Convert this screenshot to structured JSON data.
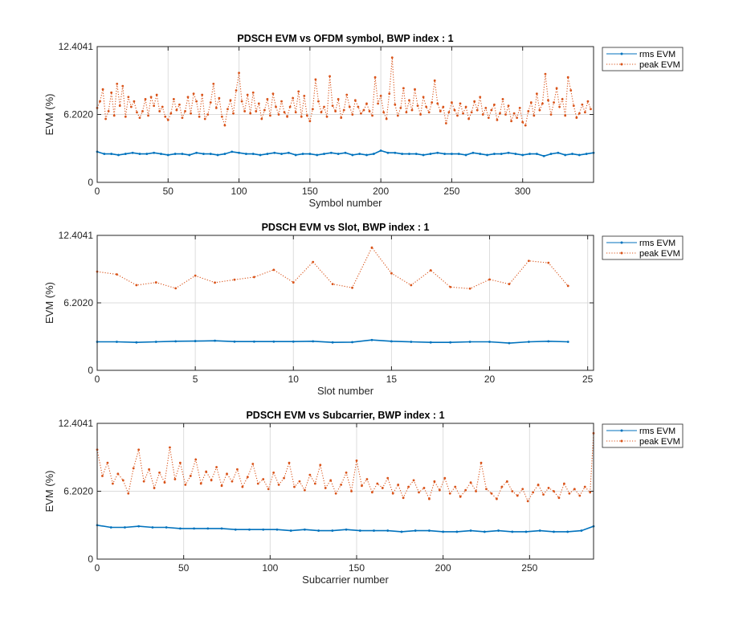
{
  "colors": {
    "rms": "#0072BD",
    "peak": "#D95319",
    "grid": "#dcdcdc",
    "axis": "#262626"
  },
  "chart_data": [
    {
      "type": "line",
      "title": "PDSCH EVM vs OFDM symbol, BWP index : 1",
      "xlabel": "Symbol number",
      "ylabel": "EVM (%)",
      "xlim": [
        0,
        350
      ],
      "ylim": [
        0,
        12.4041
      ],
      "xticks": [
        "0",
        "50",
        "100",
        "150",
        "200",
        "250",
        "300"
      ],
      "yticks": [
        "0",
        "6.2020",
        "12.4041"
      ],
      "grid": true,
      "legend": "outside-top-right",
      "series": [
        {
          "name": "rms EVM",
          "color": "#0072BD",
          "style": "solid",
          "x": [
            0,
            5,
            10,
            15,
            20,
            25,
            30,
            35,
            40,
            45,
            50,
            55,
            60,
            65,
            70,
            75,
            80,
            85,
            90,
            95,
            100,
            105,
            110,
            115,
            120,
            125,
            130,
            135,
            140,
            145,
            150,
            155,
            160,
            165,
            170,
            175,
            180,
            185,
            190,
            195,
            200,
            205,
            210,
            215,
            220,
            225,
            230,
            235,
            240,
            245,
            250,
            255,
            260,
            265,
            270,
            275,
            280,
            285,
            290,
            295,
            300,
            305,
            310,
            315,
            320,
            325,
            330,
            335,
            340,
            345,
            350
          ],
          "y": [
            2.8,
            2.6,
            2.6,
            2.5,
            2.6,
            2.7,
            2.6,
            2.6,
            2.7,
            2.6,
            2.5,
            2.6,
            2.6,
            2.5,
            2.7,
            2.6,
            2.6,
            2.5,
            2.6,
            2.8,
            2.7,
            2.6,
            2.6,
            2.5,
            2.6,
            2.7,
            2.6,
            2.7,
            2.5,
            2.6,
            2.6,
            2.5,
            2.6,
            2.7,
            2.6,
            2.7,
            2.5,
            2.6,
            2.5,
            2.6,
            2.9,
            2.7,
            2.7,
            2.6,
            2.6,
            2.6,
            2.5,
            2.6,
            2.7,
            2.6,
            2.6,
            2.6,
            2.5,
            2.7,
            2.6,
            2.5,
            2.6,
            2.6,
            2.7,
            2.6,
            2.5,
            2.6,
            2.6,
            2.4,
            2.6,
            2.7,
            2.5,
            2.6,
            2.5,
            2.6,
            2.7
          ]
        },
        {
          "name": "peak EVM",
          "color": "#D95319",
          "style": "dotted",
          "x": [
            0,
            2,
            4,
            6,
            8,
            10,
            12,
            14,
            16,
            18,
            20,
            22,
            24,
            26,
            28,
            30,
            32,
            34,
            36,
            38,
            40,
            42,
            44,
            46,
            48,
            50,
            52,
            54,
            56,
            58,
            60,
            62,
            64,
            66,
            68,
            70,
            72,
            74,
            76,
            78,
            80,
            82,
            84,
            86,
            88,
            90,
            92,
            94,
            96,
            98,
            100,
            102,
            104,
            106,
            108,
            110,
            112,
            114,
            116,
            118,
            120,
            122,
            124,
            126,
            128,
            130,
            132,
            134,
            136,
            138,
            140,
            142,
            144,
            146,
            148,
            150,
            152,
            154,
            156,
            158,
            160,
            162,
            164,
            166,
            168,
            170,
            172,
            174,
            176,
            178,
            180,
            182,
            184,
            186,
            188,
            190,
            192,
            194,
            196,
            198,
            200,
            202,
            204,
            206,
            208,
            210,
            212,
            214,
            216,
            218,
            220,
            222,
            224,
            226,
            228,
            230,
            232,
            234,
            236,
            238,
            240,
            242,
            244,
            246,
            248,
            250,
            252,
            254,
            256,
            258,
            260,
            262,
            264,
            266,
            268,
            270,
            272,
            274,
            276,
            278,
            280,
            282,
            284,
            286,
            288,
            290,
            292,
            294,
            296,
            298,
            300,
            302,
            304,
            306,
            308,
            310,
            312,
            314,
            316,
            318,
            320,
            322,
            324,
            326,
            328,
            330,
            332,
            334,
            336,
            338,
            340,
            342,
            344,
            346,
            348
          ],
          "y": [
            6.8,
            7.4,
            8.5,
            5.8,
            6.5,
            8.2,
            6.1,
            9.0,
            7.0,
            8.8,
            6.0,
            7.8,
            6.9,
            7.4,
            6.4,
            5.9,
            6.5,
            7.6,
            6.1,
            7.8,
            7.0,
            8.0,
            6.5,
            6.9,
            6.0,
            5.7,
            6.3,
            7.6,
            6.6,
            7.1,
            5.9,
            6.5,
            7.8,
            6.3,
            8.1,
            7.4,
            6.0,
            8.0,
            5.8,
            6.2,
            7.3,
            9.0,
            6.8,
            7.7,
            6.0,
            5.2,
            6.7,
            7.5,
            6.3,
            8.4,
            10.0,
            7.4,
            6.5,
            8.0,
            6.3,
            8.2,
            6.5,
            7.2,
            5.8,
            6.6,
            7.6,
            6.1,
            8.1,
            6.9,
            6.2,
            7.4,
            6.4,
            6.0,
            6.9,
            7.7,
            6.4,
            8.3,
            6.0,
            7.9,
            6.1,
            5.6,
            6.7,
            9.4,
            7.4,
            6.4,
            6.9,
            6.0,
            9.7,
            7.0,
            6.5,
            7.6,
            5.9,
            6.6,
            8.0,
            6.9,
            6.2,
            7.5,
            6.9,
            6.3,
            6.6,
            7.2,
            6.5,
            6.1,
            9.6,
            7.2,
            7.9,
            6.4,
            5.8,
            8.1,
            11.4,
            7.1,
            6.1,
            6.8,
            8.6,
            6.4,
            7.5,
            6.6,
            8.5,
            7.0,
            6.2,
            7.8,
            6.9,
            6.4,
            7.3,
            9.3,
            7.2,
            6.5,
            6.9,
            5.4,
            6.4,
            7.3,
            6.6,
            6.1,
            7.2,
            6.3,
            6.9,
            5.8,
            6.4,
            7.4,
            6.6,
            7.8,
            6.2,
            6.8,
            5.9,
            6.6,
            7.1,
            5.7,
            6.3,
            7.6,
            6.2,
            7.0,
            5.6,
            6.3,
            5.9,
            6.8,
            5.5,
            5.2,
            6.5,
            7.3,
            6.1,
            8.1,
            6.6,
            7.2,
            9.9,
            7.5,
            6.2,
            7.3,
            8.6,
            6.9,
            7.6,
            6.1,
            9.6,
            8.4,
            7.0,
            5.9,
            6.3,
            7.1,
            6.4,
            7.4,
            6.7
          ]
        }
      ]
    },
    {
      "type": "line",
      "title": "PDSCH EVM vs Slot, BWP index : 1",
      "xlabel": "Slot number",
      "ylabel": "EVM (%)",
      "xlim": [
        0,
        25.3
      ],
      "ylim": [
        0,
        12.4041
      ],
      "xticks": [
        "0",
        "5",
        "10",
        "15",
        "20",
        "25"
      ],
      "yticks": [
        "0",
        "6.2020",
        "12.4041"
      ],
      "grid": true,
      "legend": "outside-top-right",
      "series": [
        {
          "name": "rms EVM",
          "color": "#0072BD",
          "style": "solid",
          "x": [
            0,
            1,
            2,
            3,
            4,
            5,
            6,
            7,
            8,
            9,
            10,
            11,
            12,
            13,
            14,
            15,
            16,
            17,
            18,
            19,
            20,
            21,
            22,
            23,
            24
          ],
          "y": [
            2.62,
            2.62,
            2.57,
            2.62,
            2.67,
            2.69,
            2.72,
            2.64,
            2.64,
            2.64,
            2.64,
            2.67,
            2.57,
            2.59,
            2.79,
            2.67,
            2.62,
            2.57,
            2.57,
            2.62,
            2.62,
            2.5,
            2.62,
            2.67,
            2.62
          ]
        },
        {
          "name": "peak EVM",
          "color": "#D95319",
          "style": "dotted",
          "x": [
            0,
            1,
            2,
            3,
            4,
            5,
            6,
            7,
            8,
            9,
            10,
            11,
            12,
            13,
            14,
            15,
            16,
            17,
            18,
            19,
            20,
            21,
            22,
            23,
            24
          ],
          "y": [
            9.07,
            8.82,
            7.83,
            8.08,
            7.54,
            8.7,
            8.06,
            8.33,
            8.57,
            9.24,
            8.08,
            9.96,
            7.93,
            7.59,
            11.29,
            8.92,
            7.83,
            9.19,
            7.66,
            7.51,
            8.35,
            7.93,
            10.06,
            9.88,
            7.76
          ]
        }
      ]
    },
    {
      "type": "line",
      "title": "PDSCH EVM vs Subcarrier, BWP index : 1",
      "xlabel": "Subcarrier number",
      "ylabel": "EVM (%)",
      "xlim": [
        0,
        287
      ],
      "ylim": [
        0,
        12.4041
      ],
      "xticks": [
        "0",
        "50",
        "100",
        "150",
        "200",
        "250"
      ],
      "yticks": [
        "0",
        "6.2020",
        "12.4041"
      ],
      "grid": true,
      "legend": "outside-top-right",
      "series": [
        {
          "name": "rms EVM",
          "color": "#0072BD",
          "style": "solid",
          "x": [
            0,
            8,
            16,
            24,
            32,
            40,
            48,
            56,
            64,
            72,
            80,
            88,
            96,
            104,
            112,
            120,
            128,
            136,
            144,
            152,
            160,
            168,
            176,
            184,
            192,
            200,
            208,
            216,
            224,
            232,
            240,
            248,
            256,
            264,
            272,
            280,
            287
          ],
          "y": [
            3.1,
            2.9,
            2.9,
            3.0,
            2.9,
            2.9,
            2.8,
            2.8,
            2.8,
            2.8,
            2.7,
            2.7,
            2.7,
            2.7,
            2.6,
            2.7,
            2.6,
            2.6,
            2.7,
            2.6,
            2.6,
            2.6,
            2.5,
            2.6,
            2.6,
            2.5,
            2.5,
            2.6,
            2.5,
            2.6,
            2.5,
            2.5,
            2.6,
            2.5,
            2.5,
            2.6,
            3.0
          ]
        },
        {
          "name": "peak EVM",
          "color": "#D95319",
          "style": "dotted",
          "x": [
            0,
            3,
            6,
            9,
            12,
            15,
            18,
            21,
            24,
            27,
            30,
            33,
            36,
            39,
            42,
            45,
            48,
            51,
            54,
            57,
            60,
            63,
            66,
            69,
            72,
            75,
            78,
            81,
            84,
            87,
            90,
            93,
            96,
            99,
            102,
            105,
            108,
            111,
            114,
            117,
            120,
            123,
            126,
            129,
            132,
            135,
            138,
            141,
            144,
            147,
            150,
            153,
            156,
            159,
            162,
            165,
            168,
            171,
            174,
            177,
            180,
            183,
            186,
            189,
            192,
            195,
            198,
            201,
            204,
            207,
            210,
            213,
            216,
            219,
            222,
            225,
            228,
            231,
            234,
            237,
            240,
            243,
            246,
            249,
            252,
            255,
            258,
            261,
            264,
            267,
            270,
            273,
            276,
            279,
            282,
            285,
            287
          ],
          "y": [
            10.0,
            7.6,
            8.8,
            6.9,
            7.8,
            7.2,
            6.0,
            8.3,
            10.0,
            7.1,
            8.2,
            6.5,
            7.9,
            7.0,
            10.2,
            7.3,
            8.8,
            6.8,
            7.6,
            9.1,
            6.9,
            8.0,
            7.2,
            8.4,
            6.7,
            7.8,
            7.1,
            8.2,
            6.6,
            7.5,
            8.7,
            6.9,
            7.3,
            6.4,
            7.9,
            6.8,
            7.4,
            8.8,
            6.6,
            7.1,
            6.3,
            7.7,
            6.9,
            8.6,
            6.5,
            7.2,
            6.0,
            6.8,
            7.9,
            6.2,
            9.0,
            6.7,
            7.3,
            6.1,
            6.9,
            6.5,
            7.4,
            6.0,
            6.8,
            5.6,
            6.6,
            7.2,
            6.1,
            6.5,
            5.5,
            7.1,
            6.3,
            7.4,
            6.0,
            6.6,
            5.7,
            6.3,
            7.0,
            6.2,
            8.8,
            6.4,
            6.0,
            5.5,
            6.6,
            7.1,
            6.2,
            5.8,
            6.4,
            5.3,
            6.1,
            6.8,
            5.9,
            6.5,
            6.2,
            5.6,
            6.9,
            6.0,
            6.4,
            5.8,
            6.6,
            6.1,
            11.5
          ]
        }
      ]
    }
  ]
}
